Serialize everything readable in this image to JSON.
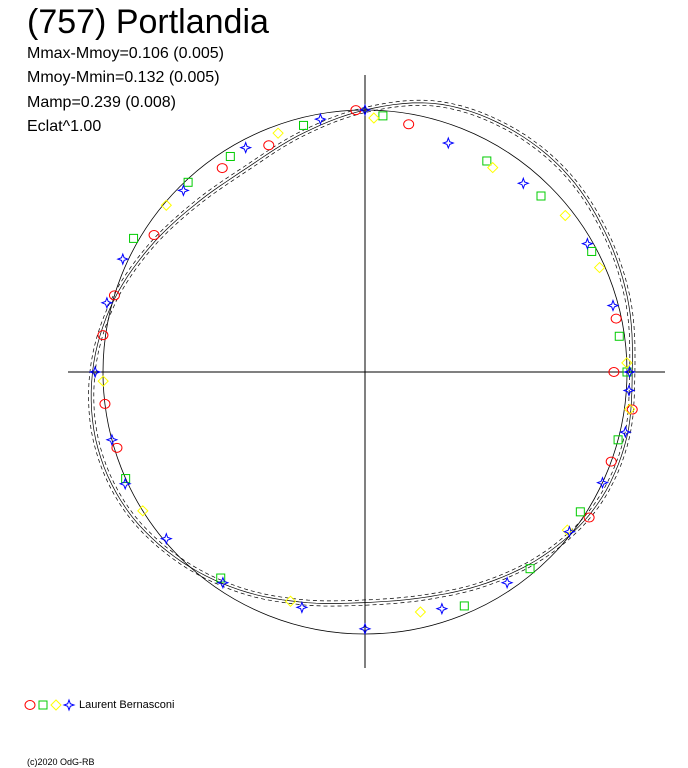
{
  "title": "(757) Portlandia",
  "stats": [
    "Mmax-Mmoy=0.106 (0.005)",
    "Mmoy-Mmin=0.132 (0.005)",
    "Mamp=0.239 (0.008)",
    "Eclat^1.00"
  ],
  "legend": {
    "label": "Laurent Bernasconi"
  },
  "footer": "(c)2020 OdG-RB",
  "colors": {
    "red": "#ff0000",
    "green": "#00cc00",
    "yellow": "#ffff00",
    "blue": "#0000ff",
    "axis": "#000000"
  },
  "chart_data": {
    "type": "scatter",
    "coordinate_system": "polar",
    "radial_quantity": "normalized brightness (Eclat^1.00)",
    "grid": false,
    "legend_placement": "bottom-left",
    "reference_circle_radius": 1.0,
    "fit_curves": [
      {
        "values": [
          1.02,
          1.04,
          1.06,
          1.08,
          1.08,
          1.06,
          1.0,
          0.94,
          0.9,
          0.91,
          0.95,
          1.0,
          1.04,
          1.06,
          1.05,
          1.01,
          0.96,
          0.91,
          0.88,
          0.89,
          0.93,
          0.98,
          1.02,
          1.03,
          1.02
        ]
      }
    ],
    "series": [
      {
        "marker": "circle",
        "color": "red",
        "points": [
          {
            "angle": 0,
            "r": 0.95
          },
          {
            "angle": 80,
            "r": 0.96
          },
          {
            "angle": 92,
            "r": 1.0
          },
          {
            "angle": 113,
            "r": 0.94
          },
          {
            "angle": 125,
            "r": 0.95
          },
          {
            "angle": 147,
            "r": 0.96
          },
          {
            "angle": 163,
            "r": 1.0
          },
          {
            "angle": 172,
            "r": 1.01
          },
          {
            "angle": 187,
            "r": 1.0
          },
          {
            "angle": 197,
            "r": 0.99
          },
          {
            "angle": 327,
            "r": 1.02
          },
          {
            "angle": 340,
            "r": 1.0
          },
          {
            "angle": 352,
            "r": 1.03
          },
          {
            "angle": 12,
            "r": 0.98
          }
        ]
      },
      {
        "marker": "square",
        "color": "green",
        "points": [
          {
            "angle": 0,
            "r": 1.0
          },
          {
            "angle": 8,
            "r": 0.98
          },
          {
            "angle": 28,
            "r": 0.98
          },
          {
            "angle": 45,
            "r": 0.95
          },
          {
            "angle": 60,
            "r": 0.93
          },
          {
            "angle": 86,
            "r": 0.98
          },
          {
            "angle": 104,
            "r": 0.97
          },
          {
            "angle": 122,
            "r": 0.97
          },
          {
            "angle": 133,
            "r": 0.99
          },
          {
            "angle": 150,
            "r": 1.02
          },
          {
            "angle": 204,
            "r": 1.0
          },
          {
            "angle": 235,
            "r": 0.96
          },
          {
            "angle": 293,
            "r": 0.97
          },
          {
            "angle": 310,
            "r": 0.98
          },
          {
            "angle": 327,
            "r": 0.98
          },
          {
            "angle": 345,
            "r": 1.0
          }
        ]
      },
      {
        "marker": "diamond",
        "color": "yellow",
        "points": [
          {
            "angle": 2,
            "r": 1.0
          },
          {
            "angle": 24,
            "r": 0.98
          },
          {
            "angle": 38,
            "r": 0.97
          },
          {
            "angle": 58,
            "r": 0.92
          },
          {
            "angle": 88,
            "r": 0.97
          },
          {
            "angle": 110,
            "r": 0.97
          },
          {
            "angle": 140,
            "r": 0.99
          },
          {
            "angle": 182,
            "r": 1.0
          },
          {
            "angle": 212,
            "r": 1.0
          },
          {
            "angle": 252,
            "r": 0.92
          },
          {
            "angle": 283,
            "r": 0.94
          },
          {
            "angle": 322,
            "r": 0.98
          },
          {
            "angle": 352,
            "r": 1.02
          }
        ]
      },
      {
        "marker": "star",
        "color": "blue",
        "points": [
          {
            "angle": 0,
            "r": 1.01
          },
          {
            "angle": 15,
            "r": 0.98
          },
          {
            "angle": 30,
            "r": 0.98
          },
          {
            "angle": 50,
            "r": 0.94
          },
          {
            "angle": 70,
            "r": 0.93
          },
          {
            "angle": 90,
            "r": 1.0
          },
          {
            "angle": 100,
            "r": 0.98
          },
          {
            "angle": 118,
            "r": 0.97
          },
          {
            "angle": 135,
            "r": 0.98
          },
          {
            "angle": 155,
            "r": 1.02
          },
          {
            "angle": 165,
            "r": 1.02
          },
          {
            "angle": 180,
            "r": 1.03
          },
          {
            "angle": 195,
            "r": 1.0
          },
          {
            "angle": 205,
            "r": 1.01
          },
          {
            "angle": 220,
            "r": 0.99
          },
          {
            "angle": 236,
            "r": 0.97
          },
          {
            "angle": 255,
            "r": 0.93
          },
          {
            "angle": 270,
            "r": 0.98
          },
          {
            "angle": 288,
            "r": 0.95
          },
          {
            "angle": 304,
            "r": 0.97
          },
          {
            "angle": 322,
            "r": 0.99
          },
          {
            "angle": 335,
            "r": 1.0
          },
          {
            "angle": 347,
            "r": 1.02
          },
          {
            "angle": 356,
            "r": 1.01
          }
        ]
      }
    ]
  }
}
